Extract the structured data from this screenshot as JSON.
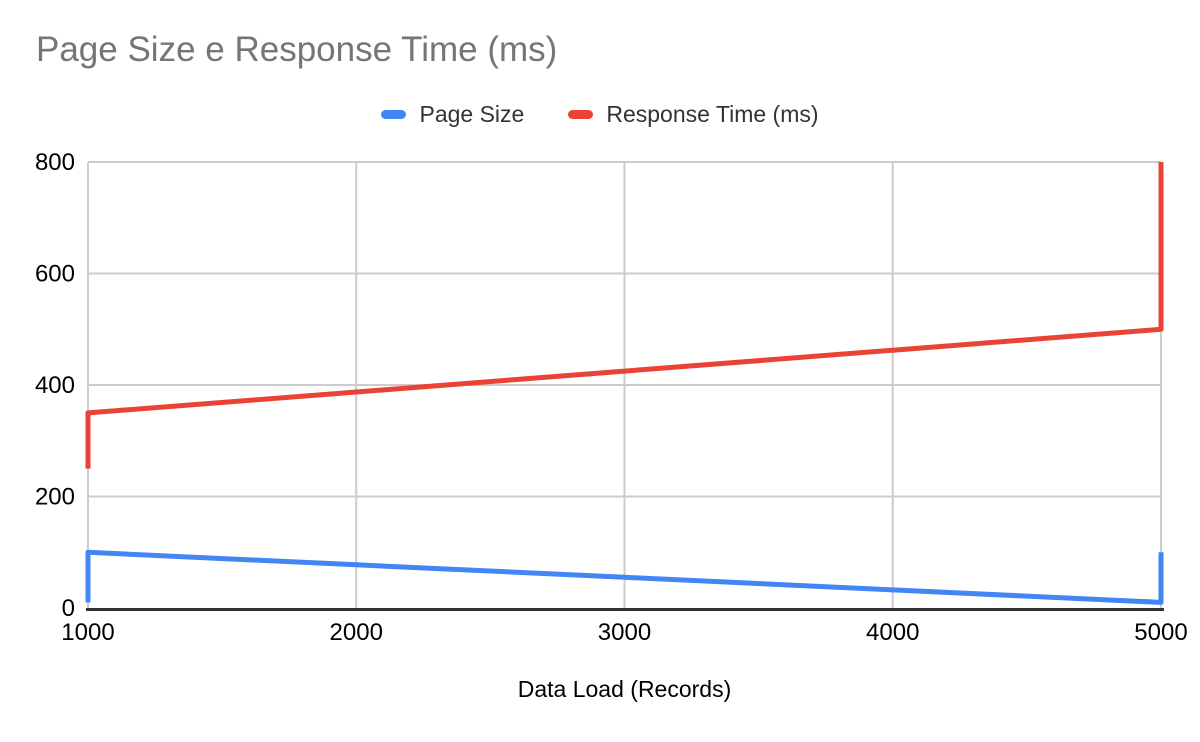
{
  "chart_data": {
    "type": "line",
    "title": "Page Size e Response Time (ms)",
    "xlabel": "Data Load (Records)",
    "ylabel": "",
    "xlim": [
      1000,
      5000
    ],
    "ylim": [
      0,
      800
    ],
    "x_ticks": [
      1000,
      2000,
      3000,
      4000,
      5000
    ],
    "y_ticks": [
      0,
      200,
      400,
      600,
      800
    ],
    "grid": true,
    "legend_position": "top-center",
    "colors": {
      "grid": "#cccccc",
      "axis": "#333333",
      "tick_text": "#000000",
      "title_text": "#757575",
      "legend_text": "#333333",
      "background": "#ffffff"
    },
    "series": [
      {
        "name": "Page Size",
        "color": "#4285f4",
        "points": [
          [
            1000,
            10
          ],
          [
            1000,
            100
          ],
          [
            2000,
            77.5
          ],
          [
            3000,
            55
          ],
          [
            4000,
            32.5
          ],
          [
            5000,
            10
          ],
          [
            5000,
            100
          ]
        ]
      },
      {
        "name": "Response Time (ms)",
        "color": "#ea4335",
        "points": [
          [
            1000,
            250
          ],
          [
            1000,
            350
          ],
          [
            2000,
            387.5
          ],
          [
            3000,
            425
          ],
          [
            4000,
            462.5
          ],
          [
            5000,
            500
          ],
          [
            5000,
            800
          ]
        ]
      }
    ]
  }
}
